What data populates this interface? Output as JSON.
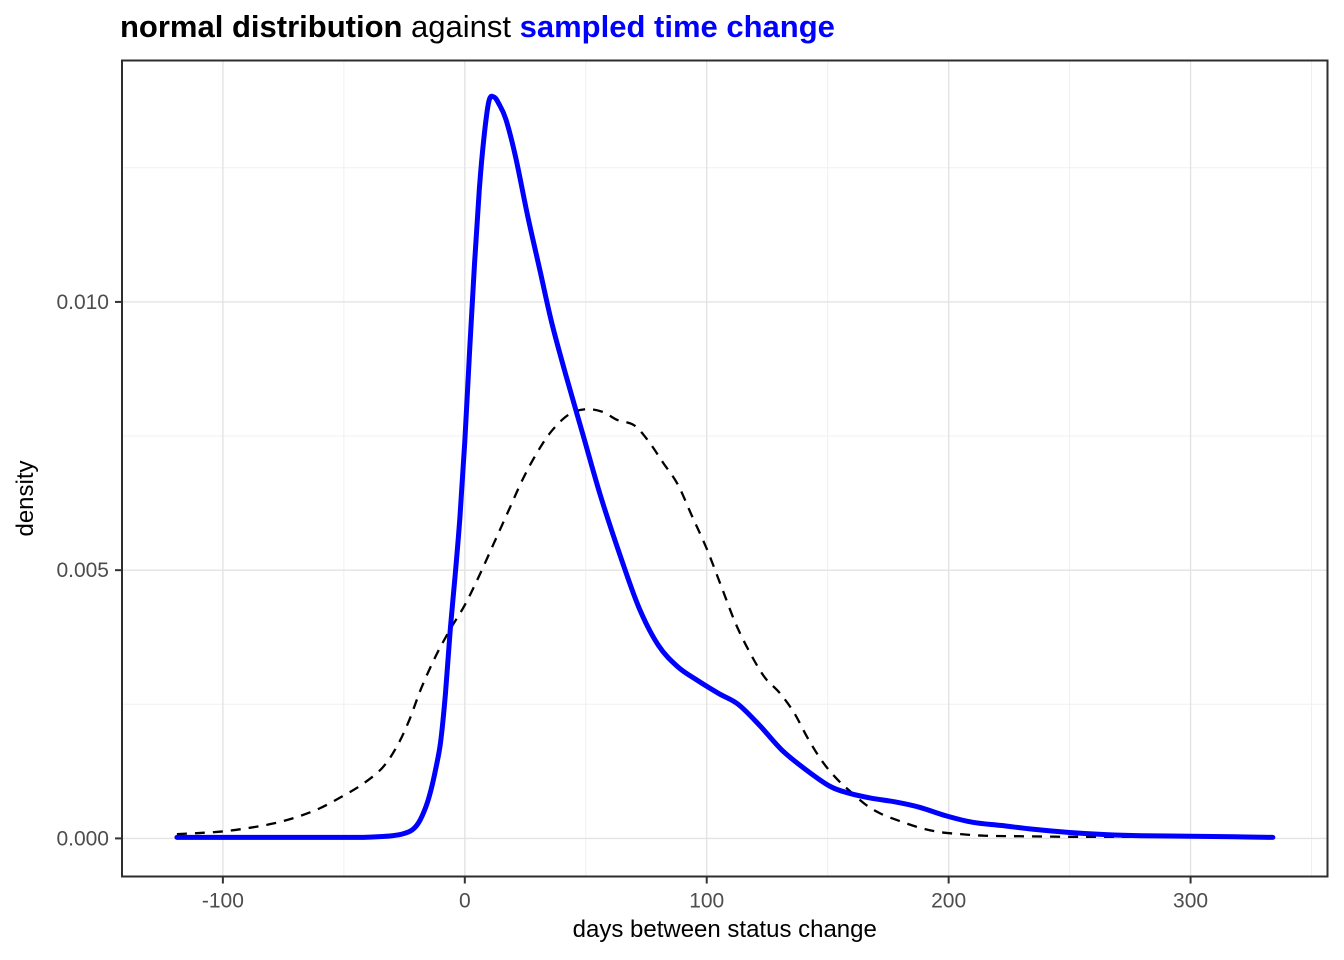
{
  "title": {
    "part1": "normal distribution",
    "part2": " against ",
    "part3": "sampled time change",
    "part3_color": "#0000FF"
  },
  "axes": {
    "x": {
      "label": "days between status change",
      "ticks": [
        -100,
        0,
        100,
        200,
        300
      ],
      "tick_labels": [
        "-100",
        "0",
        "100",
        "200",
        "300"
      ],
      "minor_ticks": [
        -50,
        50,
        150,
        250,
        350
      ],
      "range": [
        -141.7,
        356.6
      ]
    },
    "y": {
      "label": "density",
      "ticks": [
        0,
        0.005,
        0.01
      ],
      "tick_labels": [
        "0.000",
        "0.005",
        "0.010"
      ],
      "minor_ticks": [
        0.0025,
        0.0075,
        0.0125
      ],
      "range": [
        -0.00071,
        0.0145
      ]
    }
  },
  "theme": {
    "panel_background": "#FFFFFF",
    "panel_border": "#2E2E2E",
    "grid_major": "#E3E3E3",
    "grid_minor": "#F0F0F0",
    "tick_mark": "#333333",
    "tick_label_color": "#4D4D4D",
    "blue_accent": "#0000FF",
    "dashed_line_color": "#000000"
  },
  "chart_data": {
    "type": "line",
    "title": "normal distribution against sampled time change",
    "xlabel": "days between status change",
    "ylabel": "density",
    "xlim": [
      -141.7,
      356.6
    ],
    "ylim": [
      -0.00071,
      0.0145
    ],
    "grid": true,
    "legend": false,
    "series": [
      {
        "name": "normal distribution",
        "color": "#000000",
        "style": "dashed",
        "width": 2.3,
        "points": [
          [
            -119,
            8e-05
          ],
          [
            -110,
            0.0001
          ],
          [
            -100,
            0.00013
          ],
          [
            -90,
            0.00019
          ],
          [
            -80,
            0.00027
          ],
          [
            -70,
            0.00039
          ],
          [
            -60,
            0.00056
          ],
          [
            -50,
            0.0008
          ],
          [
            -42,
            0.00102
          ],
          [
            -34,
            0.00132
          ],
          [
            -28,
            0.00172
          ],
          [
            -23,
            0.0022
          ],
          [
            -18,
            0.0028
          ],
          [
            -12,
            0.0034
          ],
          [
            -6,
            0.0039
          ],
          [
            0,
            0.00435
          ],
          [
            6,
            0.0049
          ],
          [
            12,
            0.0055
          ],
          [
            18,
            0.0061
          ],
          [
            24,
            0.0067
          ],
          [
            30,
            0.0072
          ],
          [
            36,
            0.0076
          ],
          [
            43,
            0.0079
          ],
          [
            50,
            0.008
          ],
          [
            57,
            0.00795
          ],
          [
            63,
            0.0078
          ],
          [
            70,
            0.0077
          ],
          [
            76,
            0.0074
          ],
          [
            82,
            0.007
          ],
          [
            88,
            0.0066
          ],
          [
            94,
            0.006
          ],
          [
            100,
            0.0054
          ],
          [
            106,
            0.0047
          ],
          [
            112,
            0.004
          ],
          [
            118,
            0.00345
          ],
          [
            124,
            0.003
          ],
          [
            130,
            0.00272
          ],
          [
            136,
            0.00235
          ],
          [
            142,
            0.00185
          ],
          [
            148,
            0.00142
          ],
          [
            154,
            0.0011
          ],
          [
            160,
            0.00085
          ],
          [
            166,
            0.00062
          ],
          [
            172,
            0.00046
          ],
          [
            180,
            0.00032
          ],
          [
            188,
            0.0002
          ],
          [
            196,
            0.00012
          ],
          [
            205,
            8e-05
          ],
          [
            215,
            5e-05
          ],
          [
            230,
            4e-05
          ],
          [
            250,
            3e-05
          ],
          [
            270,
            3e-05
          ],
          [
            295,
            3e-05
          ],
          [
            315,
            3e-05
          ],
          [
            334,
            3e-05
          ]
        ]
      },
      {
        "name": "sampled time change",
        "color": "#0000FF",
        "style": "solid",
        "width": 5,
        "points": [
          [
            -119,
            2e-05
          ],
          [
            -110,
            2e-05
          ],
          [
            -100,
            2e-05
          ],
          [
            -90,
            2e-05
          ],
          [
            -80,
            2e-05
          ],
          [
            -70,
            2e-05
          ],
          [
            -60,
            2e-05
          ],
          [
            -50,
            2e-05
          ],
          [
            -42,
            2e-05
          ],
          [
            -36,
            3e-05
          ],
          [
            -30,
            5e-05
          ],
          [
            -26,
            8e-05
          ],
          [
            -22,
            0.00015
          ],
          [
            -19,
            0.0003
          ],
          [
            -16,
            0.0006
          ],
          [
            -14,
            0.0009
          ],
          [
            -12,
            0.0013
          ],
          [
            -10,
            0.0018
          ],
          [
            -8,
            0.0027
          ],
          [
            -6,
            0.0039
          ],
          [
            -4,
            0.0049
          ],
          [
            -2,
            0.006
          ],
          [
            0,
            0.0074
          ],
          [
            2,
            0.0091
          ],
          [
            4,
            0.0107
          ],
          [
            6,
            0.0121
          ],
          [
            8,
            0.0131
          ],
          [
            10,
            0.01375
          ],
          [
            12,
            0.01382
          ],
          [
            14,
            0.0137
          ],
          [
            17,
            0.0134
          ],
          [
            21,
            0.0127
          ],
          [
            26,
            0.0116
          ],
          [
            31,
            0.0106
          ],
          [
            36,
            0.0096
          ],
          [
            42,
            0.0086
          ],
          [
            49,
            0.0075
          ],
          [
            56,
            0.0064
          ],
          [
            64,
            0.0053
          ],
          [
            72,
            0.0043
          ],
          [
            80,
            0.0036
          ],
          [
            88,
            0.0032
          ],
          [
            96,
            0.00295
          ],
          [
            105,
            0.0027
          ],
          [
            113,
            0.0025
          ],
          [
            122,
            0.0021
          ],
          [
            131,
            0.00165
          ],
          [
            141,
            0.00128
          ],
          [
            151,
            0.00097
          ],
          [
            159,
            0.00084
          ],
          [
            168,
            0.00075
          ],
          [
            178,
            0.00068
          ],
          [
            188,
            0.00058
          ],
          [
            199,
            0.00042
          ],
          [
            210,
            0.0003
          ],
          [
            222,
            0.00024
          ],
          [
            235,
            0.00017
          ],
          [
            250,
            0.00011
          ],
          [
            265,
            7e-05
          ],
          [
            280,
            5e-05
          ],
          [
            300,
            4e-05
          ],
          [
            318,
            3e-05
          ],
          [
            334,
            2e-05
          ]
        ]
      }
    ]
  }
}
